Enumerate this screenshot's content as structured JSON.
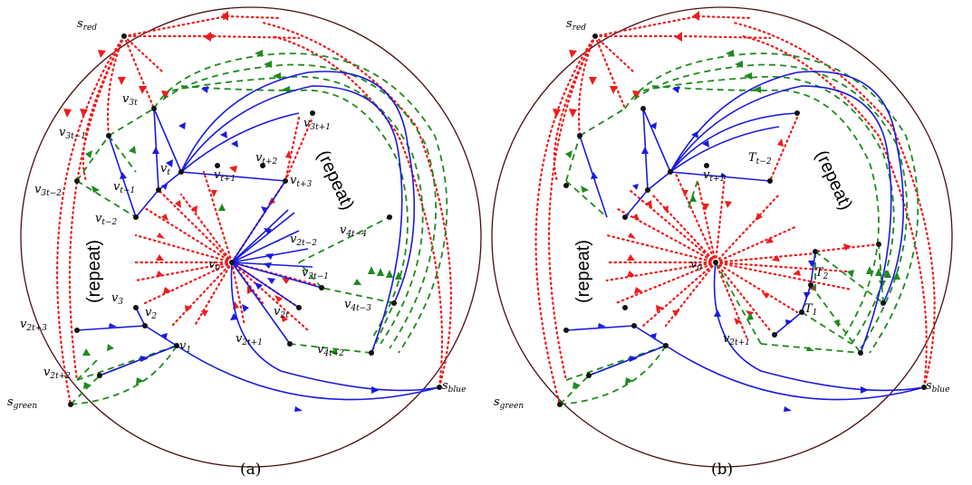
{
  "colors": {
    "red": "#ee1c1c",
    "green": "#1f8a1f",
    "blue": "#1a1adf",
    "boundary": "#4a1010",
    "vertex": "#000000"
  },
  "panel_a": {
    "caption": "(a)",
    "repeat_left": "(repeat)",
    "repeat_right": "(repeat)",
    "labels": {
      "s_red": [
        "s",
        "red"
      ],
      "s_green": [
        "s",
        "green"
      ],
      "s_blue": [
        "s",
        "blue"
      ],
      "v0": [
        "v",
        "0"
      ],
      "v1": [
        "v",
        "1"
      ],
      "v2": [
        "v",
        "2"
      ],
      "v3": [
        "v",
        "3"
      ],
      "vt": [
        "v",
        "t"
      ],
      "vt-1": [
        "v",
        "t−1"
      ],
      "vt-2": [
        "v",
        "t−2"
      ],
      "vt+1": [
        "v",
        "t+1"
      ],
      "vt+2": [
        "v",
        "t+2"
      ],
      "vt+3": [
        "v",
        "t+3"
      ],
      "v3t": [
        "v",
        "3t"
      ],
      "v3t-1": [
        "v",
        "3t−1"
      ],
      "v3t-2": [
        "v",
        "3t−2"
      ],
      "v3t+1": [
        "v",
        "3t+1"
      ],
      "v2t": [
        "v",
        "2t"
      ],
      "v2t-1": [
        "v",
        "2t−1"
      ],
      "v2t-2": [
        "v",
        "2t−2"
      ],
      "v2t+1": [
        "v",
        "2t+1"
      ],
      "v2t+2": [
        "v",
        "2t+2"
      ],
      "v2t+3": [
        "v",
        "2t+3"
      ],
      "v4t-2": [
        "v",
        "4t−2"
      ],
      "v4t-3": [
        "v",
        "4t−3"
      ],
      "v4t-4": [
        "v",
        "4t−4"
      ]
    }
  },
  "panel_b": {
    "caption": "(b)",
    "repeat_left": "(repeat)",
    "repeat_right": "(repeat)",
    "labels": {
      "s_red": [
        "s",
        "red"
      ],
      "s_green": [
        "s",
        "green"
      ],
      "s_blue": [
        "s",
        "blue"
      ],
      "v0": [
        "v",
        "0"
      ],
      "vt+1": [
        "v",
        "t+1"
      ],
      "v2t+1": [
        "v",
        "2t+1"
      ],
      "T1": [
        "T",
        "1"
      ],
      "T2": [
        "T",
        "2"
      ],
      "Tt-2": [
        "T",
        "t−2"
      ]
    }
  }
}
